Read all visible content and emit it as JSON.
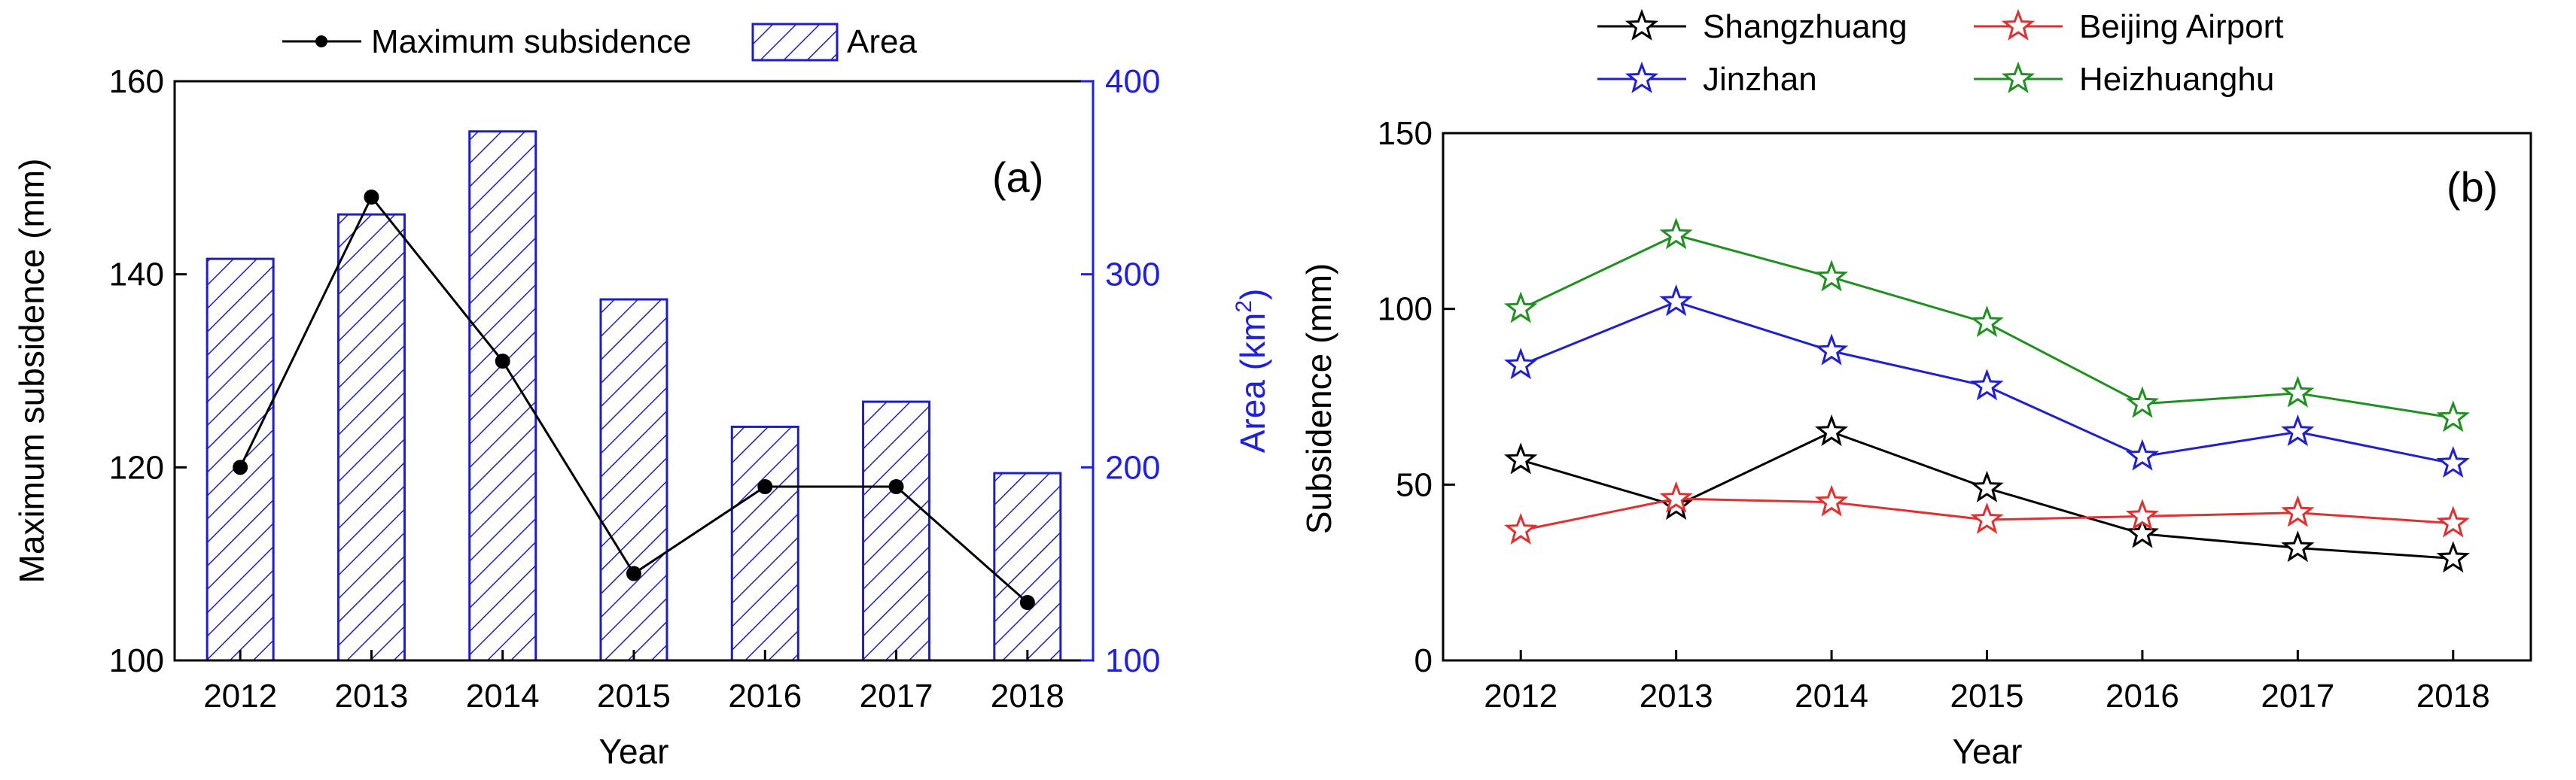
{
  "colors": {
    "axis": "#000000",
    "area": "#1f1fbf",
    "area_axis": "#1f1fdf",
    "shangzhuang": "#000000",
    "beijing_airport": "#e03030",
    "jinzhan": "#2020d0",
    "heizhuanghu": "#209020"
  },
  "chart_data": [
    {
      "type": "bar+line",
      "panel_label": "(a)",
      "categories": [
        "2012",
        "2013",
        "2014",
        "2015",
        "2016",
        "2017",
        "2018"
      ],
      "xlabel": "Year",
      "ylabel": "Maximum subsidence (mm)",
      "ylabel2_prefix": "Area (km",
      "ylabel2_sup": "2",
      "ylabel2_suffix": ")",
      "ylim": [
        100,
        160
      ],
      "yticks": [
        100,
        120,
        140,
        160
      ],
      "ylim2": [
        100,
        400
      ],
      "yticks2": [
        100,
        200,
        300,
        400
      ],
      "legend": {
        "placement": "top",
        "line": "Maximum subsidence",
        "bar": "Area"
      },
      "series": [
        {
          "name": "Maximum subsidence",
          "kind": "line",
          "axis": "left",
          "values": [
            120,
            148,
            131,
            109,
            118,
            118,
            106
          ]
        },
        {
          "name": "Area",
          "kind": "bar",
          "axis": "right",
          "values": [
            308,
            331,
            374,
            287,
            221,
            234,
            197
          ]
        }
      ]
    },
    {
      "type": "line",
      "panel_label": "(b)",
      "categories": [
        "2012",
        "2013",
        "2014",
        "2015",
        "2016",
        "2017",
        "2018"
      ],
      "xlabel": "Year",
      "ylabel": "Subsidence (mm)",
      "ylim": [
        0,
        150
      ],
      "yticks": [
        0,
        50,
        100,
        150
      ],
      "legend": {
        "placement": "top"
      },
      "series": [
        {
          "name": "Shangzhuang",
          "color_key": "shangzhuang",
          "values": [
            57,
            44,
            65,
            49,
            36,
            32,
            29
          ]
        },
        {
          "name": "Beijing Airport",
          "color_key": "beijing_airport",
          "values": [
            37,
            46,
            45,
            40,
            41,
            42,
            39
          ]
        },
        {
          "name": "Jinzhan",
          "color_key": "jinzhan",
          "values": [
            84,
            102,
            88,
            78,
            58,
            65,
            56
          ]
        },
        {
          "name": "Heizhuanghu",
          "color_key": "heizhuanghu",
          "values": [
            100,
            121,
            109,
            96,
            73,
            76,
            69
          ]
        }
      ]
    }
  ]
}
